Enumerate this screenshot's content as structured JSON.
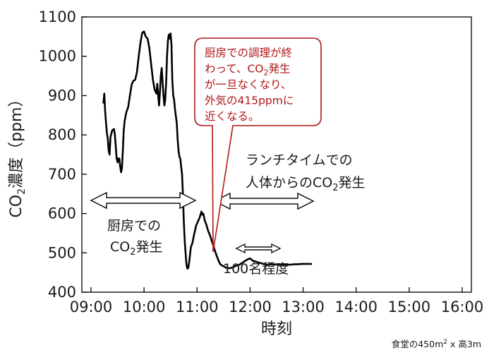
{
  "chart_data": {
    "type": "line",
    "xlabel": "時刻",
    "ylabel_main": "CO",
    "ylabel_sub": "2",
    "ylabel_rest": "濃度（ppm）",
    "ylim": [
      400,
      1100
    ],
    "yticks": [
      400,
      500,
      600,
      700,
      800,
      900,
      1000,
      1100
    ],
    "xlim": [
      "09:00",
      "16:00"
    ],
    "xticks": [
      "09:00",
      "10:00",
      "11:00",
      "12:00",
      "13:00",
      "14:00",
      "15:00",
      "16:00"
    ],
    "grid": false,
    "series": [
      {
        "color": "#000000",
        "points": [
          [
            "09:14",
            880
          ],
          [
            "09:15",
            905
          ],
          [
            "09:16",
            860
          ],
          [
            "09:17",
            830
          ],
          [
            "09:18",
            805
          ],
          [
            "09:19",
            790
          ],
          [
            "09:20",
            760
          ],
          [
            "09:21",
            750
          ],
          [
            "09:22",
            795
          ],
          [
            "09:24",
            812
          ],
          [
            "09:26",
            815
          ],
          [
            "09:27",
            800
          ],
          [
            "09:28",
            770
          ],
          [
            "09:29",
            740
          ],
          [
            "09:30",
            730
          ],
          [
            "09:31",
            740
          ],
          [
            "09:32",
            740
          ],
          [
            "09:33",
            720
          ],
          [
            "09:34",
            705
          ],
          [
            "09:35",
            715
          ],
          [
            "09:36",
            760
          ],
          [
            "09:37",
            810
          ],
          [
            "09:38",
            835
          ],
          [
            "09:40",
            858
          ],
          [
            "09:42",
            870
          ],
          [
            "09:44",
            900
          ],
          [
            "09:46",
            928
          ],
          [
            "09:48",
            938
          ],
          [
            "09:50",
            940
          ],
          [
            "09:52",
            960
          ],
          [
            "09:54",
            1000
          ],
          [
            "09:56",
            1035
          ],
          [
            "09:58",
            1060
          ],
          [
            "10:00",
            1063
          ],
          [
            "10:02",
            1050
          ],
          [
            "10:04",
            1045
          ],
          [
            "10:06",
            1020
          ],
          [
            "10:08",
            980
          ],
          [
            "10:10",
            940
          ],
          [
            "10:12",
            915
          ],
          [
            "10:14",
            905
          ],
          [
            "10:15",
            930
          ],
          [
            "10:16",
            900
          ],
          [
            "10:17",
            875
          ],
          [
            "10:18",
            910
          ],
          [
            "10:19",
            950
          ],
          [
            "10:20",
            970
          ],
          [
            "10:21",
            935
          ],
          [
            "10:22",
            900
          ],
          [
            "10:23",
            875
          ],
          [
            "10:24",
            890
          ],
          [
            "10:25",
            935
          ],
          [
            "10:26",
            1000
          ],
          [
            "10:27",
            1040
          ],
          [
            "10:28",
            1055
          ],
          [
            "10:29",
            1045
          ],
          [
            "10:30",
            1058
          ],
          [
            "10:31",
            1030
          ],
          [
            "10:32",
            940
          ],
          [
            "10:33",
            900
          ],
          [
            "10:34",
            890
          ],
          [
            "10:35",
            865
          ],
          [
            "10:37",
            830
          ],
          [
            "10:38",
            790
          ],
          [
            "10:39",
            760
          ],
          [
            "10:40",
            745
          ],
          [
            "10:41",
            740
          ],
          [
            "10:42",
            720
          ],
          [
            "10:43",
            700
          ],
          [
            "10:44",
            650
          ],
          [
            "10:45",
            580
          ],
          [
            "10:46",
            530
          ],
          [
            "10:47",
            500
          ],
          [
            "10:48",
            470
          ],
          [
            "10:49",
            460
          ],
          [
            "10:50",
            462
          ],
          [
            "10:51",
            475
          ],
          [
            "10:52",
            495
          ],
          [
            "10:53",
            515
          ],
          [
            "10:54",
            520
          ],
          [
            "10:55",
            528
          ],
          [
            "10:56",
            540
          ],
          [
            "10:57",
            550
          ],
          [
            "10:58",
            560
          ],
          [
            "10:59",
            570
          ],
          [
            "11:00",
            575
          ],
          [
            "11:01",
            580
          ],
          [
            "11:02",
            585
          ],
          [
            "11:03",
            590
          ],
          [
            "11:04",
            598
          ],
          [
            "11:05",
            605
          ],
          [
            "11:06",
            597
          ],
          [
            "11:07",
            600
          ],
          [
            "11:08",
            590
          ],
          [
            "11:09",
            580
          ],
          [
            "11:10",
            575
          ],
          [
            "11:11",
            568
          ],
          [
            "11:12",
            560
          ],
          [
            "11:13",
            553
          ],
          [
            "11:14",
            548
          ],
          [
            "11:15",
            542
          ],
          [
            "11:16",
            535
          ],
          [
            "11:17",
            528
          ],
          [
            "11:18",
            522
          ],
          [
            "11:19",
            514
          ],
          [
            "11:20",
            507
          ],
          [
            "11:21",
            500
          ],
          [
            "11:22",
            494
          ],
          [
            "11:23",
            488
          ],
          [
            "11:24",
            482
          ],
          [
            "11:25",
            477
          ],
          [
            "11:26",
            472
          ],
          [
            "11:28",
            468
          ],
          [
            "11:30",
            466
          ],
          [
            "11:33",
            462
          ],
          [
            "11:36",
            461
          ],
          [
            "11:39",
            462
          ],
          [
            "11:42",
            465
          ],
          [
            "11:45",
            468
          ],
          [
            "11:48",
            470
          ],
          [
            "11:50",
            473
          ],
          [
            "11:52",
            476
          ],
          [
            "11:54",
            479
          ],
          [
            "11:56",
            482
          ],
          [
            "11:58",
            484
          ],
          [
            "12:00",
            486
          ],
          [
            "12:03",
            480
          ],
          [
            "12:06",
            478
          ],
          [
            "12:09",
            476
          ],
          [
            "12:12",
            474
          ],
          [
            "12:15",
            472
          ],
          [
            "12:18",
            470
          ],
          [
            "12:21",
            470
          ],
          [
            "12:24",
            471
          ],
          [
            "12:27",
            470
          ],
          [
            "12:30",
            471
          ],
          [
            "12:34",
            470
          ],
          [
            "12:38",
            470
          ],
          [
            "12:42",
            470
          ],
          [
            "12:46",
            470
          ],
          [
            "12:50",
            471
          ],
          [
            "12:54",
            471
          ],
          [
            "12:58",
            472
          ],
          [
            "13:02",
            472
          ],
          [
            "13:06",
            472
          ],
          [
            "13:10",
            472
          ]
        ]
      }
    ]
  },
  "annotations": {
    "kitchen": {
      "line1": "厨房での",
      "line2_pre": "CO",
      "line2_sub": "2",
      "line2_post": "発生"
    },
    "lunch": {
      "line1": "ランチタイムでの",
      "line2_pre": "人体からのCO",
      "line2_sub": "2",
      "line2_post": "発生"
    },
    "people": "100名程度",
    "callout_lines": [
      [
        "厨房での調理が終",
        "",
        ""
      ],
      [
        "わって、CO",
        "2",
        "発生"
      ],
      [
        "が一旦なくなり、",
        "",
        ""
      ],
      [
        "外気の415ppmに",
        "",
        ""
      ],
      [
        "近くなる。",
        "",
        ""
      ]
    ]
  },
  "footnote": {
    "pre": "食堂の450m",
    "sup": "2",
    "post": " x 高3m"
  },
  "colors": {
    "line": "#000000",
    "callout": "#b01515"
  }
}
